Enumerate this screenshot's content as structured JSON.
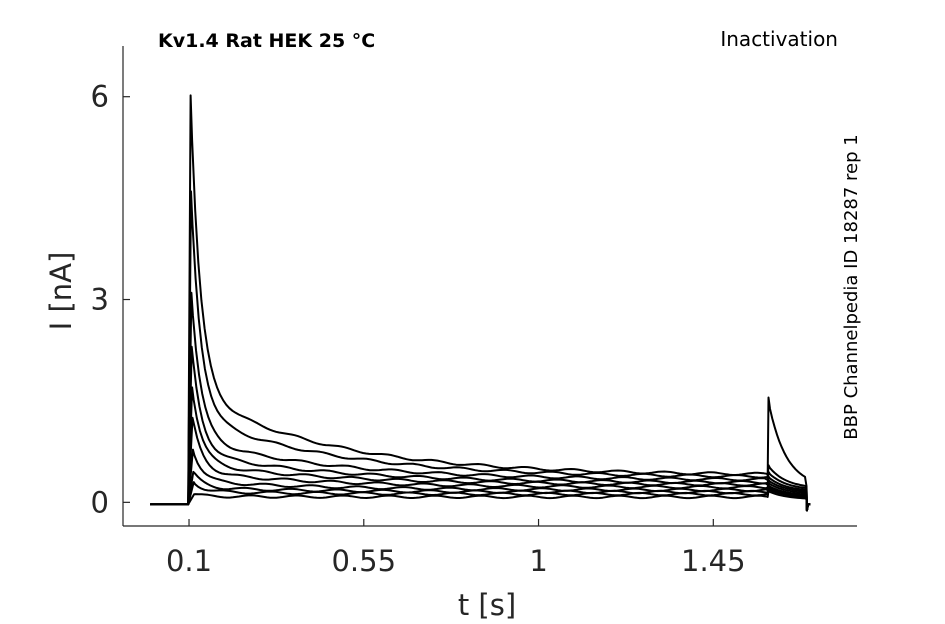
{
  "chart_data": {
    "type": "line",
    "title": "Kv1.4  Rat  HEK  25 °C",
    "protocol_label": "Inactivation",
    "side_label": "BBP Channelpedia ID 18287 rep 1",
    "xlabel": "t [s]",
    "ylabel": "I [nA]",
    "x_ticks": [
      0.1,
      0.55,
      1,
      1.45
    ],
    "x_tick_labels": [
      "0.1",
      "0.55",
      "1",
      "1.45"
    ],
    "y_ticks": [
      0,
      3,
      6
    ],
    "y_tick_labels": [
      "0",
      "3",
      "6"
    ],
    "xlim": [
      -0.07,
      1.82
    ],
    "ylim": [
      -0.35,
      6.75
    ],
    "grid": false,
    "line_color": "#000000",
    "pulse_start": 0.1,
    "pulse_end": 1.59,
    "record_start": 0.0,
    "record_end": 1.7,
    "tail_end": 1.69,
    "series": [
      {
        "peak": 6.02,
        "steady": 0.4,
        "tail_peak": 1.55
      },
      {
        "peak": 4.6,
        "steady": 0.37,
        "tail_peak": 0.55
      },
      {
        "peak": 3.1,
        "steady": 0.33,
        "tail_peak": 0.45
      },
      {
        "peak": 2.3,
        "steady": 0.29,
        "tail_peak": 0.38
      },
      {
        "peak": 1.7,
        "steady": 0.26,
        "tail_peak": 0.33
      },
      {
        "peak": 1.25,
        "steady": 0.22,
        "tail_peak": 0.29
      },
      {
        "peak": 0.78,
        "steady": 0.18,
        "tail_peak": 0.25
      },
      {
        "peak": 0.45,
        "steady": 0.15,
        "tail_peak": 0.22
      },
      {
        "peak": 0.3,
        "steady": 0.12,
        "tail_peak": 0.2
      },
      {
        "peak": 0.12,
        "steady": 0.08,
        "tail_peak": 0.17
      }
    ]
  }
}
